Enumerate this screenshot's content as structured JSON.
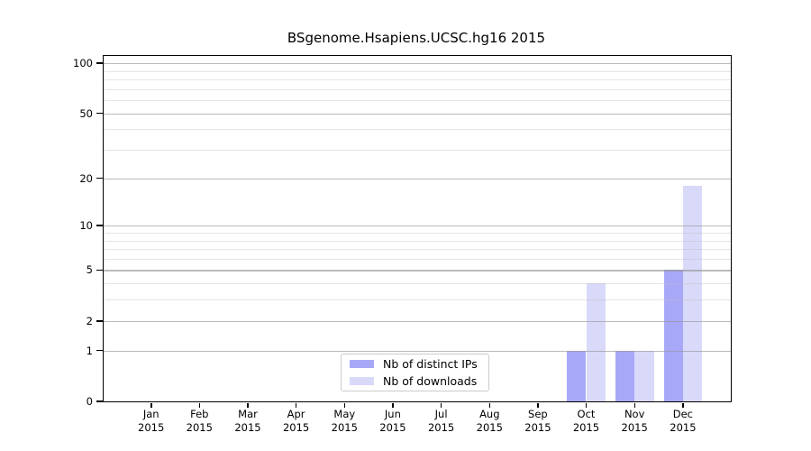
{
  "chart_data": {
    "type": "bar",
    "title": "BSgenome.Hsapiens.UCSC.hg16 2015",
    "categories": [
      "Jan 2015",
      "Feb 2015",
      "Mar 2015",
      "Apr 2015",
      "May 2015",
      "Jun 2015",
      "Jul 2015",
      "Aug 2015",
      "Sep 2015",
      "Oct 2015",
      "Nov 2015",
      "Dec 2015"
    ],
    "series": [
      {
        "name": "Nb of distinct IPs",
        "color": "#a8a8f8",
        "values": [
          0,
          0,
          0,
          0,
          0,
          0,
          0,
          0,
          0,
          1,
          1,
          5
        ]
      },
      {
        "name": "Nb of downloads",
        "color": "#d9d9fa",
        "values": [
          0,
          0,
          0,
          0,
          0,
          0,
          0,
          0,
          0,
          4,
          1,
          18
        ]
      }
    ],
    "yaxis": {
      "scale": "log1p",
      "major_ticks": [
        0,
        1,
        2,
        5,
        10,
        20,
        50,
        100
      ],
      "minor_ticks": [
        3,
        4,
        6,
        7,
        8,
        9,
        30,
        40,
        60,
        70,
        80,
        90
      ],
      "ylim": [
        0,
        112
      ]
    },
    "grid": true,
    "legend_position": "lower center",
    "colors": {
      "grid_major": "#c6c6c6",
      "grid_minor": "#eaeaea",
      "axis": "#000000",
      "background": "#ffffff"
    }
  }
}
